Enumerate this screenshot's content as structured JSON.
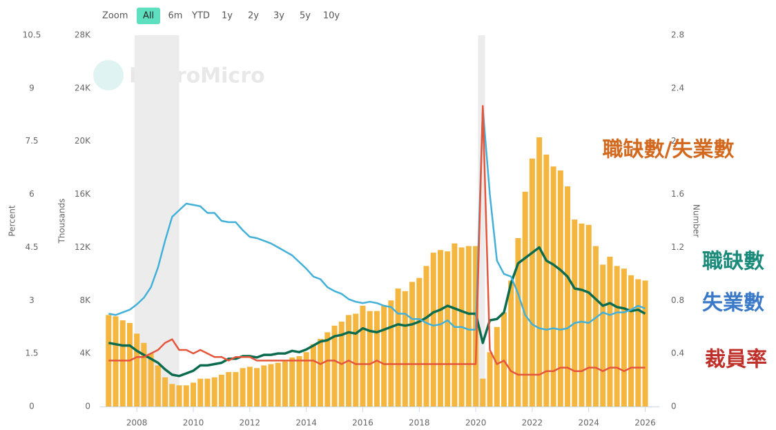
{
  "zoom": {
    "label": "Zoom",
    "buttons": [
      "All",
      "6m",
      "YTD",
      "1y",
      "2y",
      "3y",
      "5y",
      "10y"
    ],
    "active": 0
  },
  "watermark": "MacroMicro",
  "chart_data": {
    "type": "combo",
    "ylabel": "Percent",
    "y2label": "Thousands",
    "y3label": "Number",
    "xlim": [
      2006.7,
      2026.5
    ],
    "xticks": [
      2008,
      2010,
      2012,
      2014,
      2016,
      2018,
      2020,
      2022,
      2024,
      2026
    ],
    "ylim": [
      0,
      10.5
    ],
    "yticks": [
      0,
      1.5,
      3,
      4.5,
      6,
      7.5,
      9,
      10.5
    ],
    "y2lim": [
      0,
      28000
    ],
    "y2ticks": [
      0,
      {
        "value": 4000,
        "label": "4K"
      },
      {
        "value": 8000,
        "label": "8K"
      },
      {
        "value": 12000,
        "label": "12K"
      },
      {
        "value": 16000,
        "label": "16K"
      },
      {
        "value": 20000,
        "label": "20K"
      },
      {
        "value": 24000,
        "label": "24K"
      },
      {
        "value": 28000,
        "label": "28K"
      }
    ],
    "y3lim": [
      0,
      2.8
    ],
    "y3ticks": [
      0,
      0.4,
      0.8,
      1.2,
      1.6,
      2,
      2.4,
      2.8
    ],
    "shaded_ranges": [
      [
        2007.92,
        2009.5
      ],
      [
        2020.08,
        2020.33
      ]
    ],
    "x": [
      2007,
      2007.25,
      2007.5,
      2007.75,
      2008,
      2008.25,
      2008.5,
      2008.75,
      2009,
      2009.25,
      2009.5,
      2009.75,
      2010,
      2010.25,
      2010.5,
      2010.75,
      2011,
      2011.25,
      2011.5,
      2011.75,
      2012,
      2012.25,
      2012.5,
      2012.75,
      2013,
      2013.25,
      2013.5,
      2013.75,
      2014,
      2014.25,
      2014.5,
      2014.75,
      2015,
      2015.25,
      2015.5,
      2015.75,
      2016,
      2016.25,
      2016.5,
      2016.75,
      2017,
      2017.25,
      2017.5,
      2017.75,
      2018,
      2018.25,
      2018.5,
      2018.75,
      2019,
      2019.25,
      2019.5,
      2019.75,
      2020,
      2020.25,
      2020.5,
      2020.75,
      2021,
      2021.25,
      2021.5,
      2021.75,
      2022,
      2022.25,
      2022.5,
      2022.75,
      2023,
      2023.25,
      2023.5,
      2023.75,
      2024,
      2024.25,
      2024.5,
      2024.75,
      2025,
      2025.25,
      2025.5,
      2025.75,
      2026
    ],
    "series": [
      {
        "name": "職缺數/失業數",
        "type": "bar",
        "axis": "y3",
        "color": "#f4b63f",
        "label_color": "#d2691e",
        "values": [
          0.69,
          0.68,
          0.65,
          0.63,
          0.55,
          0.48,
          0.4,
          0.31,
          0.22,
          0.17,
          0.16,
          0.16,
          0.18,
          0.21,
          0.21,
          0.22,
          0.24,
          0.26,
          0.26,
          0.29,
          0.3,
          0.29,
          0.31,
          0.32,
          0.33,
          0.34,
          0.37,
          0.38,
          0.41,
          0.47,
          0.51,
          0.56,
          0.61,
          0.64,
          0.69,
          0.7,
          0.76,
          0.72,
          0.72,
          0.76,
          0.8,
          0.89,
          0.87,
          0.94,
          0.97,
          1.06,
          1.16,
          1.18,
          1.17,
          1.23,
          1.2,
          1.21,
          1.21,
          0.21,
          0.41,
          0.6,
          0.71,
          0.95,
          1.27,
          1.62,
          1.87,
          2.03,
          1.9,
          1.81,
          1.78,
          1.66,
          1.41,
          1.38,
          1.37,
          1.21,
          1.07,
          1.13,
          1.06,
          1.04,
          0.99,
          0.96,
          0.95
        ]
      },
      {
        "name": "職缺數",
        "type": "line",
        "axis": "y2",
        "color": "#0b6b4f",
        "label_color": "#1a8a7a",
        "values": [
          4800,
          4700,
          4600,
          4600,
          4200,
          3900,
          3600,
          3300,
          2800,
          2400,
          2300,
          2500,
          2700,
          3100,
          3100,
          3200,
          3300,
          3600,
          3600,
          3800,
          3800,
          3700,
          3900,
          3900,
          4000,
          4000,
          4200,
          4100,
          4300,
          4600,
          4900,
          5000,
          5300,
          5400,
          5600,
          5500,
          5900,
          5700,
          5600,
          5800,
          6000,
          6200,
          6100,
          6200,
          6400,
          6700,
          7100,
          7300,
          7600,
          7400,
          7200,
          7000,
          7000,
          4800,
          6500,
          6600,
          7100,
          9300,
          10800,
          11200,
          11600,
          12000,
          11000,
          10700,
          10300,
          9800,
          8900,
          8800,
          8600,
          8100,
          7600,
          7800,
          7500,
          7400,
          7200,
          7300,
          7000
        ]
      },
      {
        "name": "失業數",
        "type": "line",
        "axis": "y2",
        "color": "#42b0d8",
        "label_color": "#3a78c8",
        "values": [
          7000,
          6900,
          7100,
          7300,
          7700,
          8200,
          9000,
          10500,
          12500,
          14300,
          14800,
          15300,
          15200,
          15100,
          14600,
          14600,
          14000,
          13900,
          13900,
          13300,
          12800,
          12700,
          12500,
          12300,
          12000,
          11700,
          11400,
          10900,
          10400,
          9800,
          9600,
          9000,
          8700,
          8500,
          8100,
          7900,
          7800,
          7900,
          7800,
          7600,
          7500,
          7000,
          7000,
          6600,
          6600,
          6300,
          6100,
          6200,
          6500,
          6000,
          6000,
          5800,
          5800,
          22500,
          16000,
          11000,
          10000,
          9800,
          8500,
          6900,
          6200,
          5900,
          5800,
          5900,
          5800,
          5900,
          6300,
          6400,
          6300,
          6700,
          7100,
          6900,
          7100,
          7100,
          7300,
          7600,
          7400
        ]
      },
      {
        "name": "裁員率",
        "type": "line",
        "axis": "y",
        "color": "#e4553c",
        "label_color": "#c0302a",
        "values": [
          1.3,
          1.3,
          1.3,
          1.3,
          1.4,
          1.4,
          1.5,
          1.6,
          1.8,
          1.9,
          1.6,
          1.6,
          1.5,
          1.6,
          1.5,
          1.4,
          1.4,
          1.3,
          1.4,
          1.4,
          1.4,
          1.3,
          1.3,
          1.3,
          1.3,
          1.3,
          1.3,
          1.3,
          1.3,
          1.3,
          1.2,
          1.3,
          1.3,
          1.2,
          1.3,
          1.2,
          1.2,
          1.2,
          1.3,
          1.2,
          1.2,
          1.2,
          1.2,
          1.2,
          1.2,
          1.2,
          1.2,
          1.2,
          1.2,
          1.2,
          1.2,
          1.2,
          1.2,
          8.5,
          1.6,
          1.2,
          1.3,
          1.0,
          0.9,
          0.9,
          0.9,
          0.9,
          1.0,
          1.0,
          1.1,
          1.1,
          1.0,
          1.0,
          1.1,
          1.1,
          1.0,
          1.1,
          1.1,
          1.0,
          1.1,
          1.1,
          1.1
        ]
      }
    ]
  }
}
